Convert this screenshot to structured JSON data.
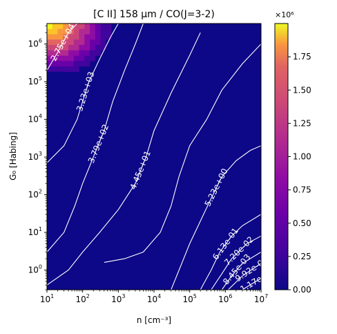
{
  "chart_data": {
    "type": "heatmap",
    "title": "[C II] 158 μm / CO(J=3-2)",
    "xlabel": "n [cm⁻³]",
    "ylabel": "G₀ [Habing]",
    "x_scale": "log",
    "y_scale": "log",
    "xlim": [
      10,
      10000000
    ],
    "ylim": [
      0.3,
      3500000
    ],
    "x_ticks": [
      {
        "base": "10",
        "exp": "1"
      },
      {
        "base": "10",
        "exp": "2"
      },
      {
        "base": "10",
        "exp": "3"
      },
      {
        "base": "10",
        "exp": "4"
      },
      {
        "base": "10",
        "exp": "5"
      },
      {
        "base": "10",
        "exp": "6"
      },
      {
        "base": "10",
        "exp": "7"
      }
    ],
    "y_ticks": [
      {
        "base": "10",
        "exp": "0"
      },
      {
        "base": "10",
        "exp": "1"
      },
      {
        "base": "10",
        "exp": "2"
      },
      {
        "base": "10",
        "exp": "3"
      },
      {
        "base": "10",
        "exp": "4"
      },
      {
        "base": "10",
        "exp": "5"
      },
      {
        "base": "10",
        "exp": "6"
      }
    ],
    "colorbar": {
      "colormap": "plasma",
      "min": 0,
      "max": 2000000,
      "scale_label": "×10⁶",
      "ticks": [
        "0.00",
        "0.25",
        "0.50",
        "0.75",
        "1.00",
        "1.25",
        "1.50",
        "1.75"
      ],
      "tick_values": [
        0,
        250000,
        500000,
        750000,
        1000000,
        1250000,
        1500000,
        1750000
      ]
    },
    "contours": [
      {
        "label": "2.75e+04",
        "points": [
          [
            10,
            200000
          ],
          [
            20,
            600000
          ],
          [
            40,
            2000000
          ],
          [
            70,
            3500000
          ]
        ]
      },
      {
        "label": "3.23e+03",
        "points": [
          [
            10,
            700
          ],
          [
            30,
            2000
          ],
          [
            70,
            10000
          ],
          [
            100,
            30000
          ],
          [
            150,
            100000
          ],
          [
            300,
            400000
          ],
          [
            600,
            1500000
          ],
          [
            1000,
            3500000
          ]
        ]
      },
      {
        "label": "3.79e+02",
        "points": [
          [
            10,
            3
          ],
          [
            30,
            10
          ],
          [
            60,
            50
          ],
          [
            100,
            200
          ],
          [
            200,
            1000
          ],
          [
            400,
            5000
          ],
          [
            700,
            30000
          ],
          [
            1500,
            200000
          ],
          [
            3000,
            1000000
          ],
          [
            5000,
            3500000
          ]
        ]
      },
      {
        "label": "4.45e+01",
        "points": [
          [
            10,
            0.4
          ],
          [
            40,
            1.0
          ],
          [
            100,
            3
          ],
          [
            300,
            10
          ],
          [
            1000,
            40
          ],
          [
            3000,
            200
          ],
          [
            6000,
            1000
          ],
          [
            10000,
            5000
          ],
          [
            30000,
            50000
          ],
          [
            100000,
            500000
          ],
          [
            200000,
            2000000
          ]
        ]
      },
      {
        "label": "",
        "points": [
          [
            400,
            1.6
          ],
          [
            1500,
            2.0
          ],
          [
            5000,
            3
          ],
          [
            15000,
            10
          ],
          [
            30000,
            50
          ],
          [
            50000,
            300
          ],
          [
            100000,
            2000
          ],
          [
            300000,
            10000
          ],
          [
            800000,
            60000
          ],
          [
            3000000,
            300000
          ],
          [
            10000000,
            1000000
          ]
        ]
      },
      {
        "label": "5.23e+00",
        "points": [
          [
            30000,
            0.3
          ],
          [
            60000,
            1.5
          ],
          [
            100000,
            5
          ],
          [
            200000,
            20
          ],
          [
            400000,
            80
          ],
          [
            800000,
            300
          ],
          [
            2000000,
            800
          ],
          [
            5000000,
            1500
          ],
          [
            10000000,
            2000
          ]
        ]
      },
      {
        "label": "6.13e-01",
        "points": [
          [
            200000,
            0.3
          ],
          [
            400000,
            1
          ],
          [
            700000,
            3
          ],
          [
            1500000,
            8
          ],
          [
            3000000,
            15
          ],
          [
            10000000,
            30
          ]
        ]
      },
      {
        "label": "7.20e-02",
        "points": [
          [
            400000,
            0.3
          ],
          [
            800000,
            0.8
          ],
          [
            1500000,
            2
          ],
          [
            4000000,
            5
          ],
          [
            10000000,
            8
          ]
        ]
      },
      {
        "label": "8.45e-03",
        "points": [
          [
            800000,
            0.3
          ],
          [
            1500000,
            0.7
          ],
          [
            3000000,
            1.5
          ],
          [
            10000000,
            3
          ]
        ]
      },
      {
        "label": "9.92e-04",
        "points": [
          [
            1200000,
            0.3
          ],
          [
            3000000,
            0.7
          ],
          [
            10000000,
            1.5
          ]
        ]
      },
      {
        "label": "1.17e-04",
        "points": [
          [
            3000000,
            0.3
          ],
          [
            6000000,
            0.45
          ],
          [
            10000000,
            0.6
          ]
        ]
      }
    ],
    "grid": false
  }
}
